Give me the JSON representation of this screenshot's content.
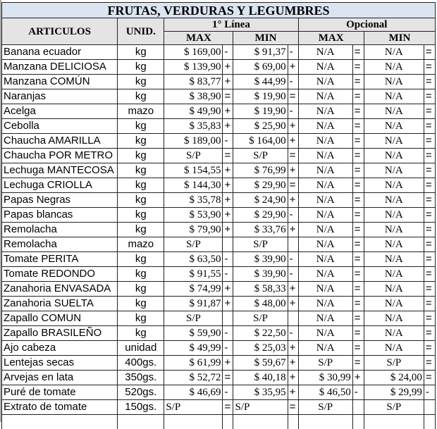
{
  "title": "FRUTAS, VERDURAS Y LEGUMBRES",
  "headers": {
    "articulos": "ARTICULOS",
    "unid": "UNID.",
    "linea": "1° Línea",
    "opcional": "Opcional",
    "max": "MAX",
    "min": "MIN"
  },
  "rows": [
    {
      "name": "Banana ecuador",
      "unit": "kg",
      "v": [
        "$ 169,00",
        "-",
        "$ 91,37",
        "-",
        "N/A",
        "=",
        "N/A",
        "="
      ]
    },
    {
      "name": "Manzana DELICIOSA",
      "unit": "kg",
      "v": [
        "$ 139,90",
        "+",
        "$ 69,00",
        "+",
        "N/A",
        "=",
        "N/A",
        "="
      ]
    },
    {
      "name": "Manzana COMÚN",
      "unit": "kg",
      "v": [
        "$ 83,77",
        "+",
        "$ 44,99",
        "-",
        "N/A",
        "=",
        "N/A",
        "="
      ]
    },
    {
      "name": "Naranjas",
      "unit": "kg",
      "v": [
        "$ 38,90",
        "=",
        "$ 19,90",
        "=",
        "N/A",
        "=",
        "N/A",
        "="
      ]
    },
    {
      "name": "Acelga",
      "unit": "mazo",
      "v": [
        "$ 49,90",
        "+",
        "$ 19,90",
        "-",
        "N/A",
        "=",
        "N/A",
        "="
      ]
    },
    {
      "name": "Cebolla",
      "unit": "kg",
      "v": [
        "$ 35,83",
        "+",
        "$ 25,90",
        "+",
        "N/A",
        "=",
        "N/A",
        "="
      ]
    },
    {
      "name": "Chaucha AMARILLA",
      "unit": "kg",
      "v": [
        "$ 189,00",
        "-",
        "$ 164,00",
        "+",
        "N/A",
        "=",
        "N/A",
        "="
      ]
    },
    {
      "name": "Chaucha POR METRO",
      "unit": "kg",
      "v": [
        "S/P",
        "=",
        "S/P",
        "=",
        "N/A",
        "=",
        "N/A",
        "="
      ]
    },
    {
      "name": "Lechuga MANTECOSA",
      "unit": "kg",
      "v": [
        "$ 154,55",
        "+",
        "$ 76,99",
        "+",
        "N/A",
        "=",
        "N/A",
        "="
      ]
    },
    {
      "name": "Lechuga CRIOLLA",
      "unit": "kg",
      "v": [
        "$ 144,30",
        "+",
        "$ 29,90",
        "=",
        "N/A",
        "=",
        "N/A",
        "="
      ]
    },
    {
      "name": "Papas Negras",
      "unit": "kg",
      "v": [
        "$ 35,78",
        "+",
        "$ 24,90",
        "+",
        "N/A",
        "=",
        "N/A",
        "="
      ]
    },
    {
      "name": "Papas blancas",
      "unit": "kg",
      "v": [
        "$ 53,90",
        "+",
        "$ 29,90",
        "-",
        "N/A",
        "=",
        "N/A",
        "="
      ]
    },
    {
      "name": "Remolacha",
      "unit": "kg",
      "v": [
        "$ 79,90",
        "+",
        "$ 33,76",
        "+",
        "N/A",
        "=",
        "N/A",
        "="
      ]
    },
    {
      "name": "Remolacha",
      "unit": "mazo",
      "v": [
        "S/P",
        "",
        "S/P",
        "",
        "N/A",
        "=",
        "N/A",
        "="
      ]
    },
    {
      "name": "Tomate PERITA",
      "unit": "kg",
      "v": [
        "$ 63,50",
        "-",
        "$ 39,90",
        "-",
        "N/A",
        "=",
        "N/A",
        "="
      ]
    },
    {
      "name": "Tomate REDONDO",
      "unit": "kg",
      "v": [
        "$ 91,55",
        "-",
        "$ 39,90",
        "-",
        "N/A",
        "=",
        "N/A",
        "="
      ]
    },
    {
      "name": "Zanahoria ENVASADA",
      "unit": "kg",
      "v": [
        "$ 74,99",
        "+",
        "$ 58,33",
        "+",
        "N/A",
        "=",
        "N/A",
        "="
      ]
    },
    {
      "name": "Zanahoria SUELTA",
      "unit": "kg",
      "v": [
        "$ 91,87",
        "+",
        "$ 48,00",
        "+",
        "N/A",
        "=",
        "N/A",
        "="
      ]
    },
    {
      "name": "Zapallo COMUN",
      "unit": "kg",
      "v": [
        "S/P",
        "",
        "S/P",
        "",
        "N/A",
        "=",
        "N/A",
        "="
      ]
    },
    {
      "name": "Zapallo BRASILEÑO",
      "unit": "kg",
      "v": [
        "$ 59,90",
        "-",
        "$ 22,50",
        "-",
        "N/A",
        "=",
        "N/A",
        "="
      ]
    },
    {
      "name": "Ajo cabeza",
      "unit": "unidad",
      "v": [
        "$ 49,99",
        "-",
        "$ 25,03",
        "+",
        "N/A",
        "=",
        "N/A",
        "="
      ]
    },
    {
      "name": "Lentejas secas",
      "unit": "400gs.",
      "v": [
        "$ 61,99",
        "+",
        "$ 59,67",
        "+",
        "S/P",
        "=",
        "S/P",
        "="
      ]
    },
    {
      "name": "Arvejas en lata",
      "unit": "350gs.",
      "v": [
        "$ 52,72",
        "=",
        "$ 40,18",
        "+",
        "$ 30,99",
        "+",
        "$ 24,00",
        "="
      ]
    },
    {
      "name": "Puré de tomate",
      "unit": "520gs.",
      "v": [
        "$ 46,69",
        "-",
        "$ 35,95",
        "+",
        "$ 46,50",
        "-",
        "$ 29,99",
        "-"
      ]
    },
    {
      "name": "Extrato de tomate",
      "unit": "150gs.",
      "v": [
        "S/P",
        "=",
        "S/P",
        "=",
        "S/P",
        "",
        "S/P",
        ""
      ]
    }
  ]
}
